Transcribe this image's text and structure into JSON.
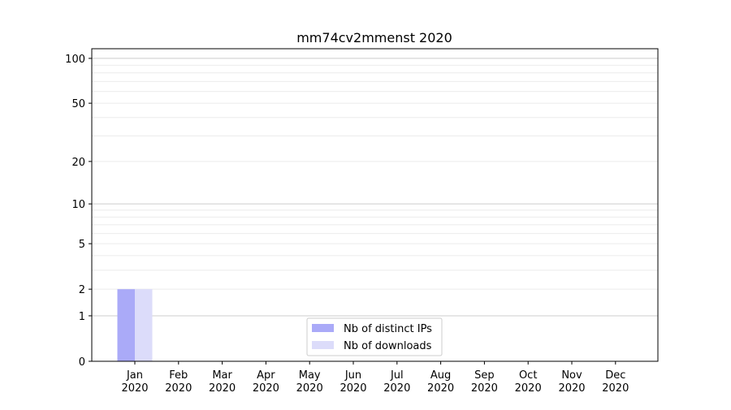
{
  "chart_data": {
    "type": "bar",
    "title": "mm74cv2mmenst 2020",
    "xlabel": "",
    "ylabel": "",
    "y_scale": "log(1+y)",
    "ylim": [
      0,
      116
    ],
    "y_ticks": [
      0,
      1,
      2,
      5,
      10,
      20,
      50,
      100
    ],
    "y_tick_labels": [
      "0",
      "1",
      "2",
      "5",
      "10",
      "20",
      "50",
      "100"
    ],
    "grid": "horizontal (major and minor)",
    "categories": [
      "Jan\n2020",
      "Feb\n2020",
      "Mar\n2020",
      "Apr\n2020",
      "May\n2020",
      "Jun\n2020",
      "Jul\n2020",
      "Aug\n2020",
      "Sep\n2020",
      "Oct\n2020",
      "Nov\n2020",
      "Dec\n2020"
    ],
    "category_months": [
      "Jan",
      "Feb",
      "Mar",
      "Apr",
      "May",
      "Jun",
      "Jul",
      "Aug",
      "Sep",
      "Oct",
      "Nov",
      "Dec"
    ],
    "category_year": "2020",
    "series": [
      {
        "name": "Nb of distinct IPs",
        "color": "#aaaaf8",
        "values": [
          2,
          0,
          0,
          0,
          0,
          0,
          0,
          0,
          0,
          0,
          0,
          0
        ]
      },
      {
        "name": "Nb of downloads",
        "color": "#dcdcfa",
        "values": [
          2,
          0,
          0,
          0,
          0,
          0,
          0,
          0,
          0,
          0,
          0,
          0
        ]
      }
    ],
    "legend_position": "lower-center"
  }
}
